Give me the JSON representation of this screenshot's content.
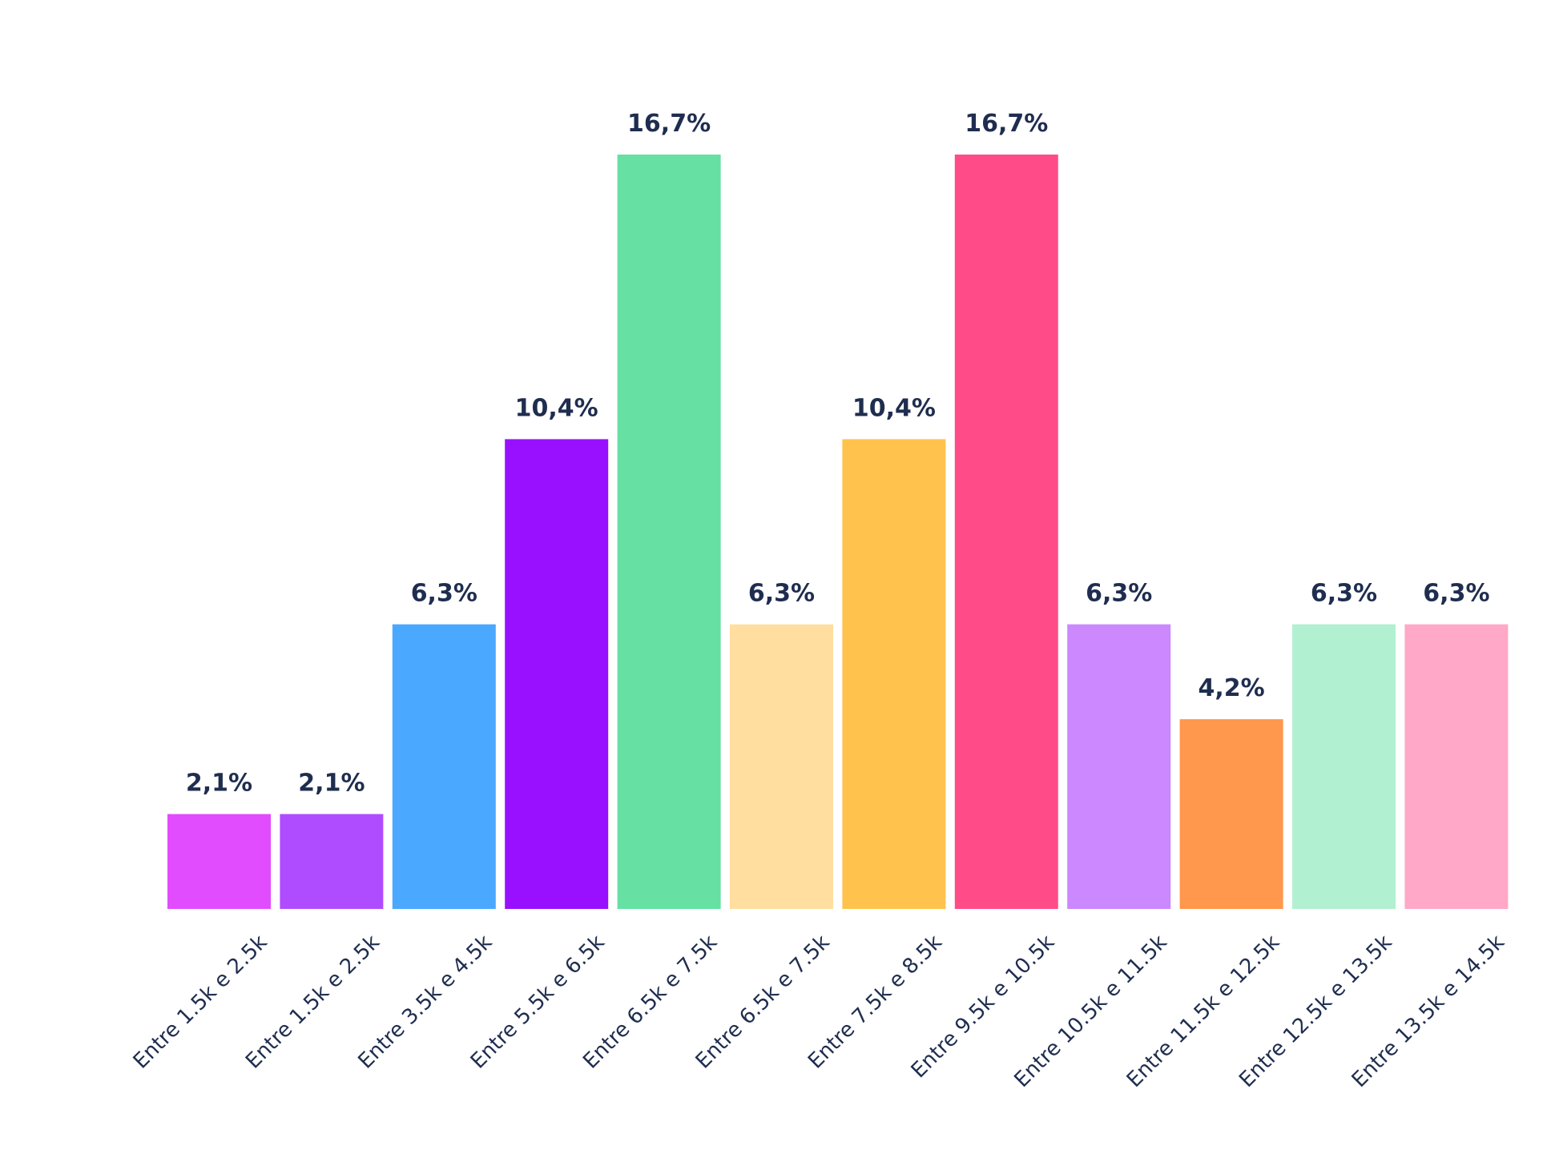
{
  "chart_data": {
    "type": "bar",
    "categories": [
      "Entre 1.5k e 2.5k",
      "Entre 1.5k e 2.5k",
      "Entre 3.5k e 4.5k",
      "Entre 5.5k e 6.5k",
      "Entre 6.5k e 7.5k",
      "Entre  6.5k e 7.5k",
      "Entre 7.5k e 8.5k",
      "Entre 9.5k e 10.5k",
      "Entre 10.5k e 11.5k",
      "Entre 11.5k e 12.5k",
      "Entre 12.5k e 13.5k",
      "Entre 13.5k e 14.5k"
    ],
    "values": [
      2.1,
      2.1,
      6.3,
      10.4,
      16.7,
      6.3,
      10.4,
      16.7,
      6.3,
      4.2,
      6.3,
      6.3
    ],
    "value_labels": [
      "2,1%",
      "2,1%",
      "6,3%",
      "10,4%",
      "16,7%",
      "6,3%",
      "10,4%",
      "16,7%",
      "6,3%",
      "4,2%",
      "6,3%",
      "6,3%"
    ],
    "colors": [
      "#e14cff",
      "#b04cff",
      "#4aa8ff",
      "#9810ff",
      "#66e0a3",
      "#ffdea0",
      "#ffc24d",
      "#ff4c88",
      "#cb88ff",
      "#ff974c",
      "#b1f0d1",
      "#ffa8c8"
    ],
    "title": "",
    "xlabel": "",
    "ylabel": "",
    "ylim": [
      0,
      16.7
    ],
    "grid": false,
    "legend": "none"
  }
}
